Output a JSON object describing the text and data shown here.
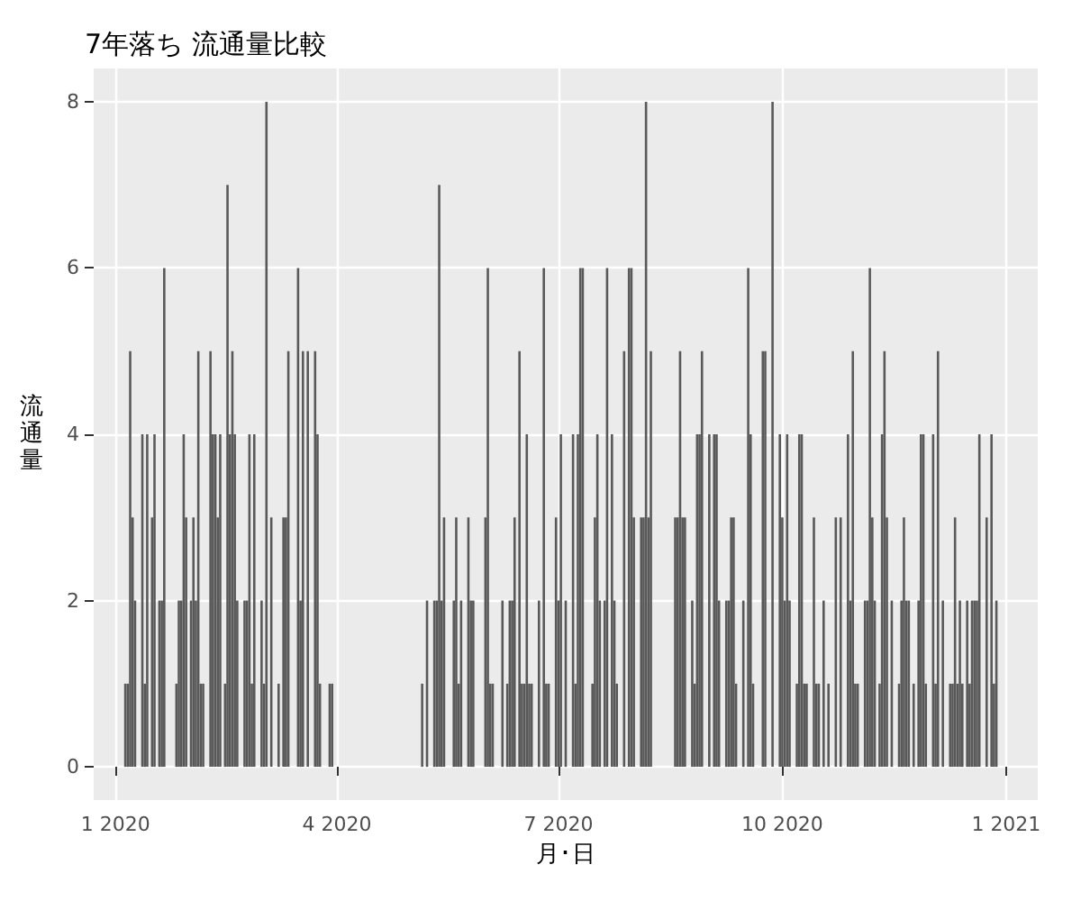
{
  "chart_data": {
    "type": "bar",
    "title": "7年落ち 流通量比較",
    "xlabel": "月･日",
    "ylabel": "流通量",
    "color": "#595959",
    "grid": true,
    "x": [
      "2020-01-05",
      "2020-01-06",
      "2020-01-07",
      "2020-01-08",
      "2020-01-09",
      "2020-01-12",
      "2020-01-13",
      "2020-01-14",
      "2020-01-16",
      "2020-01-17",
      "2020-01-19",
      "2020-01-20",
      "2020-01-21",
      "2020-01-26",
      "2020-01-27",
      "2020-01-28",
      "2020-01-29",
      "2020-01-30",
      "2020-02-01",
      "2020-02-02",
      "2020-02-03",
      "2020-02-04",
      "2020-02-05",
      "2020-02-06",
      "2020-02-09",
      "2020-02-10",
      "2020-02-11",
      "2020-02-12",
      "2020-02-13",
      "2020-02-15",
      "2020-02-16",
      "2020-02-17",
      "2020-02-18",
      "2020-02-19",
      "2020-02-20",
      "2020-02-23",
      "2020-02-24",
      "2020-02-25",
      "2020-02-26",
      "2020-02-27",
      "2020-03-01",
      "2020-03-02",
      "2020-03-03",
      "2020-03-05",
      "2020-03-08",
      "2020-03-10",
      "2020-03-11",
      "2020-03-12",
      "2020-03-16",
      "2020-03-17",
      "2020-03-18",
      "2020-03-20",
      "2020-03-23",
      "2020-03-24",
      "2020-03-25",
      "2020-03-29",
      "2020-03-30",
      "2020-05-06",
      "2020-05-08",
      "2020-05-11",
      "2020-05-12",
      "2020-05-13",
      "2020-05-14",
      "2020-05-15",
      "2020-05-19",
      "2020-05-20",
      "2020-05-21",
      "2020-05-22",
      "2020-05-25",
      "2020-05-26",
      "2020-05-27",
      "2020-06-01",
      "2020-06-02",
      "2020-06-03",
      "2020-06-04",
      "2020-06-08",
      "2020-06-10",
      "2020-06-11",
      "2020-06-12",
      "2020-06-13",
      "2020-06-15",
      "2020-06-16",
      "2020-06-17",
      "2020-06-18",
      "2020-06-19",
      "2020-06-20",
      "2020-06-23",
      "2020-06-25",
      "2020-06-26",
      "2020-06-27",
      "2020-06-30",
      "2020-07-01",
      "2020-07-02",
      "2020-07-04",
      "2020-07-07",
      "2020-07-08",
      "2020-07-09",
      "2020-07-10",
      "2020-07-11",
      "2020-07-15",
      "2020-07-16",
      "2020-07-17",
      "2020-07-18",
      "2020-07-20",
      "2020-07-21",
      "2020-07-23",
      "2020-07-24",
      "2020-07-25",
      "2020-07-28",
      "2020-07-30",
      "2020-07-31",
      "2020-08-01",
      "2020-08-04",
      "2020-08-05",
      "2020-08-06",
      "2020-08-07",
      "2020-08-08",
      "2020-08-18",
      "2020-08-19",
      "2020-08-20",
      "2020-08-21",
      "2020-08-22",
      "2020-08-25",
      "2020-08-26",
      "2020-08-27",
      "2020-08-28",
      "2020-08-29",
      "2020-09-01",
      "2020-09-03",
      "2020-09-04",
      "2020-09-05",
      "2020-09-08",
      "2020-09-09",
      "2020-09-10",
      "2020-09-11",
      "2020-09-12",
      "2020-09-15",
      "2020-09-17",
      "2020-09-18",
      "2020-09-19",
      "2020-09-23",
      "2020-09-24",
      "2020-09-27",
      "2020-09-30",
      "2020-10-01",
      "2020-10-02",
      "2020-10-03",
      "2020-10-04",
      "2020-10-07",
      "2020-10-08",
      "2020-10-09",
      "2020-10-10",
      "2020-10-11",
      "2020-10-14",
      "2020-10-15",
      "2020-10-16",
      "2020-10-18",
      "2020-10-20",
      "2020-10-23",
      "2020-10-25",
      "2020-10-28",
      "2020-10-29",
      "2020-10-30",
      "2020-10-31",
      "2020-11-01",
      "2020-11-04",
      "2020-11-05",
      "2020-11-06",
      "2020-11-07",
      "2020-11-08",
      "2020-11-10",
      "2020-11-11",
      "2020-11-12",
      "2020-11-13",
      "2020-11-15",
      "2020-11-18",
      "2020-11-19",
      "2020-11-20",
      "2020-11-21",
      "2020-11-22",
      "2020-11-24",
      "2020-11-26",
      "2020-11-27",
      "2020-11-28",
      "2020-11-29",
      "2020-12-02",
      "2020-12-03",
      "2020-12-04",
      "2020-12-06",
      "2020-12-09",
      "2020-12-10",
      "2020-12-11",
      "2020-12-12",
      "2020-12-13",
      "2020-12-14",
      "2020-12-16",
      "2020-12-17",
      "2020-12-18",
      "2020-12-19",
      "2020-12-20",
      "2020-12-21",
      "2020-12-24",
      "2020-12-26",
      "2020-12-27",
      "2020-12-28"
    ],
    "values": [
      1,
      1,
      5,
      3,
      2,
      4,
      1,
      4,
      3,
      4,
      2,
      2,
      6,
      1,
      2,
      2,
      4,
      3,
      2,
      3,
      2,
      5,
      1,
      1,
      5,
      4,
      4,
      3,
      4,
      1,
      7,
      4,
      5,
      4,
      2,
      2,
      2,
      4,
      1,
      4,
      2,
      1,
      8,
      3,
      1,
      3,
      3,
      5,
      6,
      2,
      5,
      5,
      5,
      4,
      1,
      1,
      1,
      1,
      2,
      2,
      2,
      7,
      2,
      3,
      2,
      3,
      1,
      2,
      3,
      2,
      2,
      3,
      6,
      1,
      1,
      2,
      1,
      2,
      2,
      3,
      5,
      1,
      1,
      4,
      1,
      1,
      2,
      6,
      1,
      1,
      3,
      2,
      4,
      2,
      4,
      1,
      4,
      6,
      6,
      1,
      3,
      4,
      2,
      2,
      6,
      4,
      2,
      1,
      5,
      6,
      6,
      3,
      3,
      3,
      8,
      3,
      5,
      3,
      3,
      5,
      3,
      3,
      2,
      1,
      4,
      4,
      5,
      4,
      4,
      4,
      2,
      2,
      2,
      3,
      3,
      1,
      2,
      6,
      4,
      1,
      5,
      5,
      8,
      4,
      3,
      2,
      4,
      2,
      1,
      4,
      4,
      1,
      1,
      3,
      1,
      1,
      2,
      1,
      3,
      3,
      4,
      2,
      5,
      1,
      1,
      2,
      2,
      6,
      3,
      2,
      1,
      4,
      5,
      3,
      2,
      1,
      2,
      3,
      2,
      2,
      1,
      2,
      4,
      4,
      1,
      4,
      1,
      5,
      2,
      1,
      1,
      3,
      1,
      2,
      1,
      2,
      1,
      2,
      2,
      2,
      4,
      3,
      4,
      1,
      2
    ],
    "xlim": [
      "2019-12-23",
      "2021-01-14"
    ],
    "xticks": [
      {
        "value": "2020-01-01",
        "label": "1 2020"
      },
      {
        "value": "2020-04-01",
        "label": "4 2020"
      },
      {
        "value": "2020-07-01",
        "label": "7 2020"
      },
      {
        "value": "2020-10-01",
        "label": "10 2020"
      },
      {
        "value": "2021-01-01",
        "label": "1 2021"
      }
    ],
    "ylim": [
      -0.4,
      8.4
    ],
    "yticks": [
      0,
      2,
      4,
      6,
      8
    ]
  }
}
